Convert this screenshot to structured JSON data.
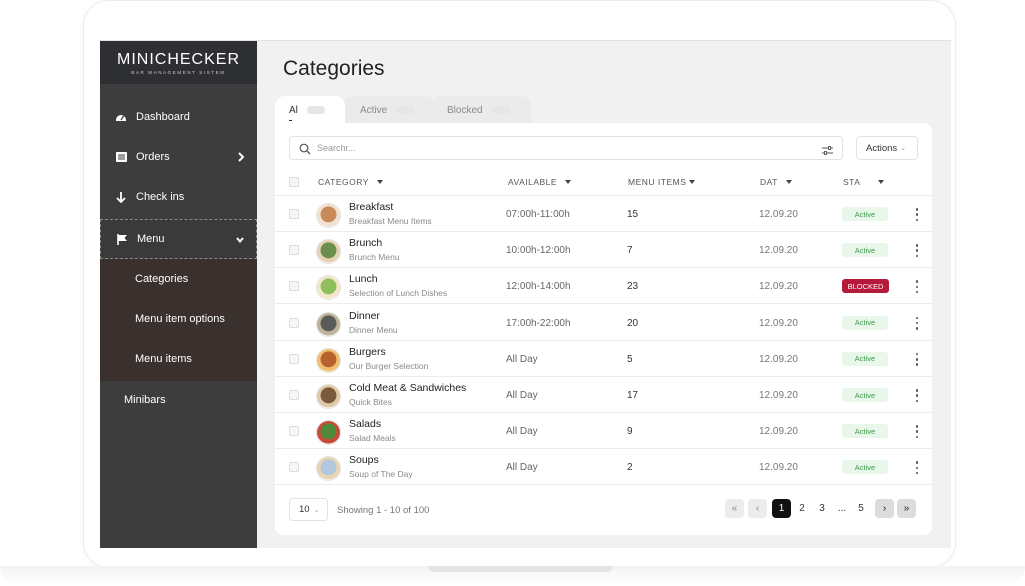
{
  "brand": {
    "name": "MINICHECKER",
    "tagline": "BAR MANAGEMENT SISTEM"
  },
  "sidebar": {
    "items": [
      {
        "label": "Dashboard",
        "icon": "dashboard-gauge-icon"
      },
      {
        "label": "Orders",
        "icon": "orders-list-icon",
        "expand": "chevron-right-icon"
      },
      {
        "label": "Check ins",
        "icon": "arrow-down-icon"
      },
      {
        "label": "Menu",
        "icon": "flag-icon",
        "expand": "chevron-down-icon",
        "active": true
      }
    ],
    "submenu": [
      "Categories",
      "Menu item options",
      "Menu items"
    ],
    "extra": "Minibars"
  },
  "page": {
    "title": "Categories"
  },
  "tabs": [
    {
      "label": "Al",
      "active": true
    },
    {
      "label": "Active"
    },
    {
      "label": "Blocked"
    }
  ],
  "search": {
    "placeholder": "Searchr..."
  },
  "actions": {
    "label": "Actions"
  },
  "table": {
    "headers": {
      "category": "CATEGORY",
      "available": "AVAILABLE",
      "menu_items": "MENU ITEMS",
      "date": "DAT",
      "status": "STA"
    },
    "rows": [
      {
        "name": "Breakfast",
        "desc": "Breakfast Menu Items",
        "available": "07:00h-11:00h",
        "items": "15",
        "date": "12.09.20",
        "status": "Active"
      },
      {
        "name": "Brunch",
        "desc": "Brunch Menu",
        "available": "10:00h-12:00h",
        "items": "7",
        "date": "12.09.20",
        "status": "Active"
      },
      {
        "name": "Lunch",
        "desc": "Selection of Lunch Dishes",
        "available": "12:00h-14:00h",
        "items": "23",
        "date": "12.09.20",
        "status": "BLOCKED"
      },
      {
        "name": "Dinner",
        "desc": "Dinner Menu",
        "available": "17:00h-22:00h",
        "items": "20",
        "date": "12.09.20",
        "status": "Active"
      },
      {
        "name": "Burgers",
        "desc": "Our Burger Selection",
        "available": "All Day",
        "items": "5",
        "date": "12.09.20",
        "status": "Active"
      },
      {
        "name": "Cold Meat & Sandwiches",
        "desc": "Quick Bites",
        "available": "All Day",
        "items": "17",
        "date": "12.09.20",
        "status": "Active"
      },
      {
        "name": "Salads",
        "desc": "Salad Meals",
        "available": "All Day",
        "items": "9",
        "date": "12.09.20",
        "status": "Active"
      },
      {
        "name": "Soups",
        "desc": "Soup of The Day",
        "available": "All Day",
        "items": "2",
        "date": "12.09.20",
        "status": "Active"
      }
    ]
  },
  "pagination": {
    "page_size": "10",
    "showing": "Showing 1 - 10 of 100",
    "pages": [
      "1",
      "2",
      "3",
      "...",
      "5"
    ],
    "first": "«",
    "prev": "‹",
    "next": "›",
    "last": "»"
  },
  "colors": {
    "sidebar": "#3d3d3d",
    "submenu": "#3a302d",
    "blocked": "#b5193b",
    "active_text": "#3c9a4a",
    "active_bg": "#e8f7ea"
  }
}
